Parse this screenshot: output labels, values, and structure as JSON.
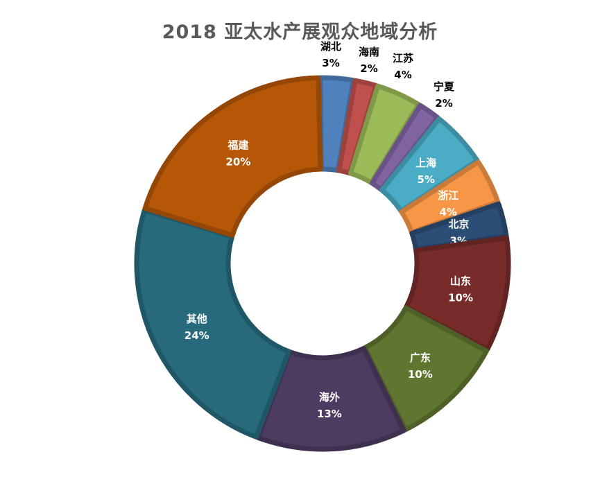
{
  "chart_data": {
    "type": "pie",
    "title": "2018 亚太水产展观众地域分析",
    "categories": [
      "湖北",
      "海南",
      "江苏",
      "宁夏",
      "上海",
      "浙江",
      "北京",
      "山东",
      "广东",
      "海外",
      "其他",
      "福建"
    ],
    "values": [
      3,
      2,
      4,
      2,
      5,
      4,
      3,
      10,
      10,
      13,
      24,
      20
    ],
    "value_labels": [
      "3%",
      "2%",
      "4%",
      "2%",
      "5%",
      "4%",
      "3%",
      "10%",
      "10%",
      "13%",
      "24%",
      "20%"
    ],
    "colors": [
      "#4f81bd",
      "#c0504d",
      "#9bbb59",
      "#8064a2",
      "#4bacc6",
      "#f79646",
      "#2c4d75",
      "#772c2a",
      "#5f7530",
      "#4d3b62",
      "#276a7c",
      "#b65708"
    ],
    "legend": "none"
  }
}
